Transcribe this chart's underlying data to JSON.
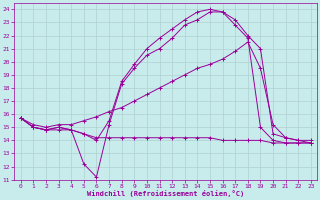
{
  "xlabel": "Windchill (Refroidissement éolien,°C)",
  "xlim": [
    -0.5,
    23.5
  ],
  "ylim": [
    11,
    24.5
  ],
  "yticks": [
    11,
    12,
    13,
    14,
    15,
    16,
    17,
    18,
    19,
    20,
    21,
    22,
    23,
    24
  ],
  "xticks": [
    0,
    1,
    2,
    3,
    4,
    5,
    6,
    7,
    8,
    9,
    10,
    11,
    12,
    13,
    14,
    15,
    16,
    17,
    18,
    19,
    20,
    21,
    22,
    23
  ],
  "background_color": "#c8ecec",
  "grid_color": "#b0d0d0",
  "line_color": "#990099",
  "lines": [
    {
      "x": [
        0,
        1,
        2,
        3,
        4,
        5,
        6,
        7,
        8,
        9,
        10,
        11,
        12,
        13,
        14,
        15,
        16,
        17,
        18,
        19,
        20,
        21,
        22,
        23
      ],
      "y": [
        15.7,
        15.0,
        14.8,
        14.8,
        14.8,
        14.5,
        14.2,
        14.2,
        14.2,
        14.2,
        14.2,
        14.2,
        14.2,
        14.2,
        14.2,
        14.2,
        14.0,
        14.0,
        14.0,
        14.0,
        13.8,
        13.8,
        13.8,
        13.8
      ]
    },
    {
      "x": [
        0,
        1,
        2,
        3,
        4,
        5,
        6,
        7,
        8,
        9,
        10,
        11,
        12,
        13,
        14,
        15,
        16,
        17,
        18,
        19,
        20,
        21,
        22,
        23
      ],
      "y": [
        15.7,
        15.0,
        14.8,
        15.0,
        14.8,
        12.2,
        11.2,
        15.2,
        18.3,
        19.5,
        20.5,
        21.0,
        21.8,
        22.8,
        23.2,
        23.8,
        23.8,
        22.8,
        21.8,
        15.0,
        14.0,
        13.8,
        13.8,
        13.8
      ]
    },
    {
      "x": [
        0,
        1,
        2,
        3,
        4,
        5,
        6,
        7,
        8,
        9,
        10,
        11,
        12,
        13,
        14,
        15,
        16,
        17,
        18,
        19,
        20,
        21,
        22,
        23
      ],
      "y": [
        15.7,
        15.0,
        14.8,
        15.0,
        14.8,
        14.5,
        14.0,
        15.5,
        18.5,
        19.8,
        21.0,
        21.8,
        22.5,
        23.2,
        23.8,
        24.0,
        23.8,
        23.2,
        22.0,
        21.0,
        14.5,
        14.2,
        14.0,
        13.8
      ]
    },
    {
      "x": [
        0,
        1,
        2,
        3,
        4,
        5,
        6,
        7,
        8,
        9,
        10,
        11,
        12,
        13,
        14,
        15,
        16,
        17,
        18,
        19,
        20,
        21,
        22,
        23
      ],
      "y": [
        15.7,
        15.2,
        15.0,
        15.2,
        15.2,
        15.5,
        15.8,
        16.2,
        16.5,
        17.0,
        17.5,
        18.0,
        18.5,
        19.0,
        19.5,
        19.8,
        20.2,
        20.8,
        21.5,
        19.5,
        15.2,
        14.2,
        14.0,
        14.0
      ]
    }
  ]
}
